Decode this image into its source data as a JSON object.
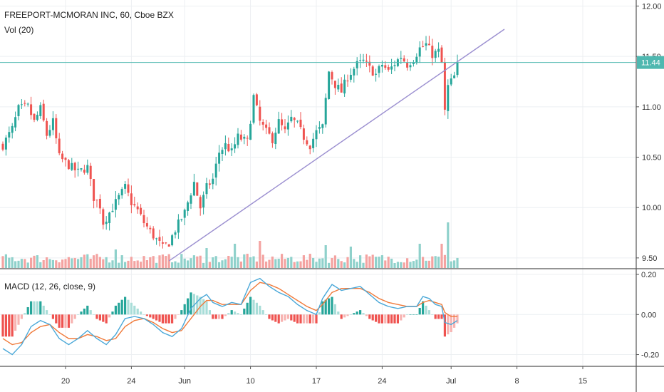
{
  "legend": {
    "symbol": "FREEPORT-MCMORAN INC, 60, Cboe BZX",
    "volume": "Vol (20)",
    "macd": "MACD (12, 26, close, 9)"
  },
  "colors": {
    "up": "#26a69a",
    "down": "#ef5350",
    "up_light": "#a8ddd8",
    "down_light": "#f7b3b1",
    "vol_up": "#8fd1cb",
    "vol_down": "#f4a3a1",
    "macd_line": "#4aa8d8",
    "signal_line": "#f07a3a",
    "trendline": "#9b8fd0",
    "price_line": "#4fb8b0",
    "grid": "#eceff2",
    "axis": "#555555"
  },
  "chart_data": [
    {
      "type": "candlestick",
      "title": "FREEPORT-MCMORAN INC, 60, Cboe BZX",
      "x_tick_labels": [
        "20",
        "24",
        "Jun",
        "10",
        "17",
        "24",
        "Jul",
        "8",
        "15"
      ],
      "y_ticks": [
        9.5,
        10.0,
        10.5,
        11.0,
        11.5,
        12.0
      ],
      "y_tick_labels": [
        "9.50",
        "10.00",
        "10.50",
        "11.00",
        "11.50",
        "12.00"
      ],
      "ylim": [
        9.4,
        12.06
      ],
      "last_price": 11.44,
      "last_price_label": "11.44",
      "grid": true,
      "close_path": [
        [
          0,
          10.62
        ],
        [
          3,
          10.78
        ],
        [
          5,
          10.98
        ],
        [
          8,
          11.0
        ],
        [
          10,
          10.85
        ],
        [
          12,
          10.98
        ],
        [
          14,
          10.72
        ],
        [
          16,
          10.85
        ],
        [
          18,
          10.5
        ],
        [
          21,
          10.42
        ],
        [
          24,
          10.35
        ],
        [
          27,
          10.4
        ],
        [
          29,
          10.1
        ],
        [
          31,
          10.02
        ],
        [
          32,
          9.85
        ],
        [
          34,
          9.95
        ],
        [
          37,
          10.1
        ],
        [
          39,
          10.2
        ],
        [
          41,
          10.05
        ],
        [
          43,
          9.97
        ],
        [
          45,
          9.85
        ],
        [
          48,
          9.72
        ],
        [
          51,
          9.6
        ],
        [
          53,
          9.65
        ],
        [
          55,
          9.78
        ],
        [
          58,
          9.95
        ],
        [
          61,
          10.25
        ],
        [
          63,
          10.0
        ],
        [
          65,
          10.2
        ],
        [
          67,
          10.28
        ],
        [
          69,
          10.55
        ],
        [
          71,
          10.62
        ],
        [
          73,
          10.55
        ],
        [
          75,
          10.7
        ],
        [
          78,
          10.65
        ],
        [
          80,
          11.1
        ],
        [
          82,
          10.85
        ],
        [
          84,
          10.75
        ],
        [
          86,
          10.68
        ],
        [
          88,
          10.85
        ],
        [
          90,
          10.75
        ],
        [
          92,
          10.88
        ],
        [
          94,
          10.82
        ],
        [
          96,
          10.7
        ],
        [
          98,
          10.62
        ],
        [
          100,
          10.75
        ],
        [
          102,
          10.8
        ],
        [
          104,
          11.35
        ],
        [
          106,
          11.22
        ],
        [
          108,
          11.15
        ],
        [
          110,
          11.3
        ],
        [
          112,
          11.38
        ],
        [
          113,
          11.42
        ],
        [
          115,
          11.45
        ],
        [
          117,
          11.38
        ],
        [
          119,
          11.32
        ],
        [
          121,
          11.42
        ],
        [
          123,
          11.35
        ],
        [
          125,
          11.43
        ],
        [
          127,
          11.5
        ],
        [
          129,
          11.42
        ],
        [
          131,
          11.48
        ],
        [
          133,
          11.58
        ],
        [
          135,
          11.62
        ],
        [
          137,
          11.52
        ],
        [
          139,
          11.55
        ],
        [
          140,
          11.43
        ],
        [
          141,
          10.95
        ],
        [
          142,
          11.2
        ],
        [
          144,
          11.3
        ],
        [
          145,
          11.44
        ]
      ],
      "trendline": [
        [
          53,
          9.47
        ],
        [
          160,
          11.77
        ]
      ],
      "volume": {
        "spikes": [
          [
            142,
            3.2
          ],
          [
            140,
            1.7
          ],
          [
            133,
            1.7
          ],
          [
            82,
            1.9
          ],
          [
            74,
            1.7
          ],
          [
            103,
            1.6
          ],
          [
            111,
            1.5
          ],
          [
            36,
            1.3
          ],
          [
            65,
            1.4
          ]
        ]
      }
    },
    {
      "type": "line",
      "title": "MACD (12, 26, close, 9)",
      "y_ticks": [
        -0.2,
        0.0,
        0.2
      ],
      "y_tick_labels": [
        "-0.20",
        "0.00",
        "0.20"
      ],
      "ylim": [
        -0.255,
        0.225
      ],
      "series": [
        {
          "name": "MACD",
          "points": [
            [
              0,
              -0.17
            ],
            [
              3,
              -0.2
            ],
            [
              6,
              -0.15
            ],
            [
              9,
              -0.06
            ],
            [
              12,
              -0.03
            ],
            [
              15,
              -0.05
            ],
            [
              18,
              -0.12
            ],
            [
              21,
              -0.15
            ],
            [
              24,
              -0.12
            ],
            [
              27,
              -0.08
            ],
            [
              30,
              -0.12
            ],
            [
              33,
              -0.15
            ],
            [
              36,
              -0.1
            ],
            [
              39,
              -0.02
            ],
            [
              42,
              -0.01
            ],
            [
              45,
              -0.02
            ],
            [
              48,
              -0.05
            ],
            [
              51,
              -0.09
            ],
            [
              54,
              -0.11
            ],
            [
              57,
              -0.07
            ],
            [
              60,
              0.03
            ],
            [
              63,
              0.08
            ],
            [
              65,
              0.1
            ],
            [
              67,
              0.06
            ],
            [
              70,
              0.04
            ],
            [
              73,
              0.06
            ],
            [
              76,
              0.05
            ],
            [
              79,
              0.16
            ],
            [
              82,
              0.18
            ],
            [
              85,
              0.14
            ],
            [
              88,
              0.11
            ],
            [
              91,
              0.09
            ],
            [
              94,
              0.05
            ],
            [
              97,
              0.02
            ],
            [
              100,
              0.0
            ],
            [
              102,
              0.08
            ],
            [
              105,
              0.15
            ],
            [
              108,
              0.12
            ],
            [
              111,
              0.13
            ],
            [
              114,
              0.14
            ],
            [
              117,
              0.1
            ],
            [
              120,
              0.06
            ],
            [
              123,
              0.04
            ],
            [
              126,
              0.03
            ],
            [
              129,
              0.04
            ],
            [
              132,
              0.04
            ],
            [
              134,
              0.09
            ],
            [
              136,
              0.08
            ],
            [
              138,
              0.05
            ],
            [
              140,
              0.04
            ],
            [
              141,
              -0.04
            ],
            [
              143,
              -0.05
            ],
            [
              145,
              -0.03
            ]
          ]
        },
        {
          "name": "Signal",
          "points": [
            [
              0,
              -0.12
            ],
            [
              3,
              -0.15
            ],
            [
              6,
              -0.14
            ],
            [
              9,
              -0.09
            ],
            [
              12,
              -0.06
            ],
            [
              15,
              -0.05
            ],
            [
              18,
              -0.09
            ],
            [
              21,
              -0.12
            ],
            [
              24,
              -0.12
            ],
            [
              27,
              -0.1
            ],
            [
              30,
              -0.11
            ],
            [
              33,
              -0.13
            ],
            [
              36,
              -0.12
            ],
            [
              39,
              -0.06
            ],
            [
              42,
              -0.03
            ],
            [
              45,
              -0.02
            ],
            [
              48,
              -0.04
            ],
            [
              51,
              -0.07
            ],
            [
              54,
              -0.09
            ],
            [
              57,
              -0.08
            ],
            [
              60,
              -0.02
            ],
            [
              63,
              0.04
            ],
            [
              65,
              0.07
            ],
            [
              67,
              0.07
            ],
            [
              70,
              0.05
            ],
            [
              73,
              0.05
            ],
            [
              76,
              0.05
            ],
            [
              79,
              0.12
            ],
            [
              82,
              0.16
            ],
            [
              85,
              0.15
            ],
            [
              88,
              0.13
            ],
            [
              91,
              0.1
            ],
            [
              94,
              0.07
            ],
            [
              97,
              0.04
            ],
            [
              100,
              0.02
            ],
            [
              102,
              0.05
            ],
            [
              105,
              0.11
            ],
            [
              108,
              0.13
            ],
            [
              111,
              0.13
            ],
            [
              114,
              0.13
            ],
            [
              117,
              0.11
            ],
            [
              120,
              0.08
            ],
            [
              123,
              0.06
            ],
            [
              126,
              0.05
            ],
            [
              129,
              0.04
            ],
            [
              132,
              0.04
            ],
            [
              134,
              0.06
            ],
            [
              136,
              0.07
            ],
            [
              138,
              0.06
            ],
            [
              140,
              0.05
            ],
            [
              141,
              0.01
            ],
            [
              143,
              -0.01
            ],
            [
              145,
              -0.01
            ]
          ]
        }
      ]
    }
  ]
}
